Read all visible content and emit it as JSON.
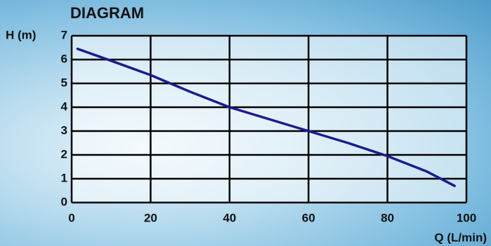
{
  "chart_data": {
    "type": "line",
    "title": "DIAGRAM",
    "x_label": "Q (L/min)",
    "y_label": "H (m)",
    "x": [
      1.5,
      10,
      20,
      30,
      40,
      50,
      60,
      70,
      80,
      90,
      97
    ],
    "series": [
      {
        "name": "H",
        "color": "#1c1a8e",
        "values": [
          6.45,
          5.95,
          5.35,
          4.65,
          4.0,
          3.5,
          3.0,
          2.5,
          1.95,
          1.3,
          0.7
        ]
      }
    ],
    "xlim": [
      0,
      100
    ],
    "xticks": [
      0,
      20,
      40,
      60,
      80,
      100
    ],
    "ylim": [
      0,
      7
    ],
    "yticks": [
      0,
      1,
      2,
      3,
      4,
      5,
      6,
      7
    ],
    "grid": true
  }
}
